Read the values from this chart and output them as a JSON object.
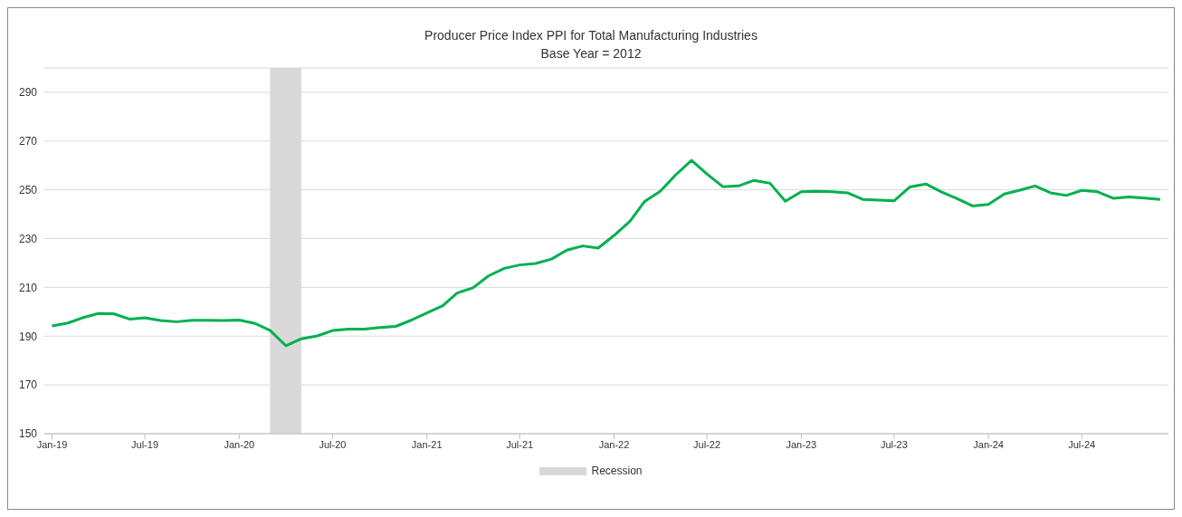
{
  "chart_data": {
    "type": "line",
    "title": "Producer Price Index PPI for Total Manufacturing Industries",
    "subtitle": "Base Year = 2012",
    "x": [
      "2019-01",
      "2019-02",
      "2019-03",
      "2019-04",
      "2019-05",
      "2019-06",
      "2019-07",
      "2019-08",
      "2019-09",
      "2019-10",
      "2019-11",
      "2019-12",
      "2020-01",
      "2020-02",
      "2020-03",
      "2020-04",
      "2020-05",
      "2020-06",
      "2020-07",
      "2020-08",
      "2020-09",
      "2020-10",
      "2020-11",
      "2020-12",
      "2021-01",
      "2021-02",
      "2021-03",
      "2021-04",
      "2021-05",
      "2021-06",
      "2021-07",
      "2021-08",
      "2021-09",
      "2021-10",
      "2021-11",
      "2021-12",
      "2022-01",
      "2022-02",
      "2022-03",
      "2022-04",
      "2022-05",
      "2022-06",
      "2022-07",
      "2022-08",
      "2022-09",
      "2022-10",
      "2022-11",
      "2022-12",
      "2023-01",
      "2023-02",
      "2023-03",
      "2023-04",
      "2023-05",
      "2023-06",
      "2023-07",
      "2023-08",
      "2023-09",
      "2023-10",
      "2023-11",
      "2023-12",
      "2024-01",
      "2024-02",
      "2024-03",
      "2024-04",
      "2024-05",
      "2024-06",
      "2024-07",
      "2024-08",
      "2024-09",
      "2024-10",
      "2024-11",
      "2024-12"
    ],
    "series": [
      {
        "color": "#00b050",
        "values": [
          194.2,
          195.4,
          197.5,
          199.3,
          199.2,
          197.0,
          197.5,
          196.4,
          195.9,
          196.5,
          196.5,
          196.4,
          196.6,
          195.2,
          192.4,
          186.1,
          188.9,
          190.1,
          192.3,
          192.9,
          192.9,
          193.5,
          194.0,
          196.5,
          199.5,
          202.5,
          207.7,
          209.8,
          214.7,
          217.8,
          219.2,
          219.8,
          221.6,
          225.3,
          227.0,
          226.1,
          231.3,
          237.1,
          245.1,
          249.4,
          256.1,
          262.1,
          256.5,
          251.3,
          251.6,
          253.9,
          252.7,
          245.3,
          249.2,
          249.4,
          249.2,
          248.8,
          246.1,
          245.8,
          245.5,
          251.2,
          252.4,
          249.2,
          246.4,
          243.4,
          244.0,
          248.3,
          249.8,
          251.6,
          248.8,
          247.7,
          249.8,
          249.2,
          246.5,
          247.1,
          246.6,
          246.1
        ]
      }
    ],
    "xlim": [
      "2018-12-17",
      "2024-12-17"
    ],
    "xticks": [
      {
        "value": "2019-01",
        "label": "Jan-19"
      },
      {
        "value": "2019-07",
        "label": "Jul-19"
      },
      {
        "value": "2020-01",
        "label": "Jan-20"
      },
      {
        "value": "2020-07",
        "label": "Jul-20"
      },
      {
        "value": "2021-01",
        "label": "Jan-21"
      },
      {
        "value": "2021-07",
        "label": "Jul-21"
      },
      {
        "value": "2022-01",
        "label": "Jan-22"
      },
      {
        "value": "2022-07",
        "label": "Jul-22"
      },
      {
        "value": "2023-01",
        "label": "Jan-23"
      },
      {
        "value": "2023-07",
        "label": "Jul-23"
      },
      {
        "value": "2024-01",
        "label": "Jan-24"
      },
      {
        "value": "2024-07",
        "label": "Jul-24"
      }
    ],
    "ylim": [
      150,
      300
    ],
    "yticks": [
      150,
      170,
      190,
      210,
      230,
      250,
      270,
      290
    ],
    "bands": [
      {
        "axis": "x",
        "from": "2020-03",
        "to": "2020-05",
        "label": "Recession",
        "color": "#d9d9d9"
      }
    ],
    "grid": "y",
    "legend": "bottom",
    "marker": "none",
    "line_style": "solid"
  }
}
